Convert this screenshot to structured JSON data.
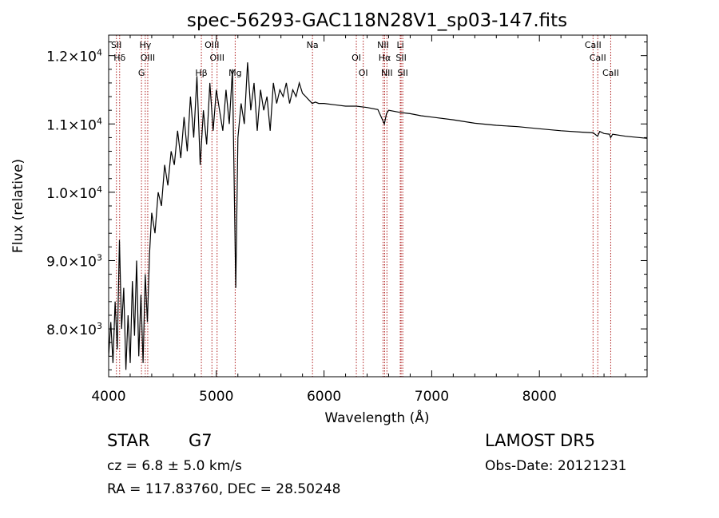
{
  "chart_data": {
    "type": "line",
    "title": "spec-56293-GAC118N28V1_sp03-147.fits",
    "xlabel": "Wavelength (Å)",
    "ylabel": "Flux (relative)",
    "xlim": [
      4000,
      9000
    ],
    "ylim": [
      7300,
      12300
    ],
    "grid": false,
    "x_ticks": [
      4000,
      5000,
      6000,
      7000,
      8000
    ],
    "x_tick_labels": [
      "4000",
      "5000",
      "6000",
      "7000",
      "8000"
    ],
    "y_ticks": [
      8000,
      9000,
      10000,
      11000,
      12000
    ],
    "y_tick_mantissa": [
      "8.0",
      "9.0",
      "1.0",
      "1.1",
      "1.2"
    ],
    "y_tick_exponent": [
      "3",
      "3",
      "4",
      "4",
      "4"
    ],
    "y_tick_times": "×10",
    "line_color": "#000000",
    "marker_color": "#b02020",
    "series": [
      {
        "x": [
          4000,
          4020,
          4040,
          4060,
          4080,
          4100,
          4120,
          4140,
          4160,
          4180,
          4200,
          4220,
          4240,
          4260,
          4280,
          4300,
          4320,
          4340,
          4360,
          4380,
          4400,
          4430,
          4460,
          4490,
          4520,
          4550,
          4580,
          4610,
          4640,
          4670,
          4700,
          4730,
          4760,
          4790,
          4820,
          4850,
          4880,
          4910,
          4940,
          4970,
          5000,
          5030,
          5060,
          5090,
          5120,
          5150,
          5180,
          5200,
          5230,
          5260,
          5290,
          5320,
          5350,
          5380,
          5410,
          5440,
          5470,
          5500,
          5530,
          5560,
          5590,
          5620,
          5650,
          5680,
          5710,
          5740,
          5770,
          5800,
          5830,
          5860,
          5890,
          5920,
          5950,
          6000,
          6100,
          6200,
          6300,
          6400,
          6500,
          6560,
          6580,
          6600,
          6700,
          6800,
          6900,
          7000,
          7200,
          7400,
          7600,
          7800,
          8000,
          8200,
          8400,
          8500,
          8540,
          8560,
          8600,
          8650,
          8662,
          8680,
          8800,
          9000
        ],
        "y": [
          7600,
          8100,
          7500,
          8400,
          7700,
          9300,
          8000,
          8600,
          7400,
          8200,
          7500,
          8700,
          7900,
          9000,
          7600,
          8500,
          7500,
          8800,
          8100,
          9100,
          9700,
          9400,
          10000,
          9800,
          10400,
          10100,
          10600,
          10400,
          10900,
          10500,
          11100,
          10600,
          11400,
          10800,
          11700,
          10400,
          11200,
          10700,
          11600,
          10900,
          11500,
          11200,
          10900,
          11500,
          11000,
          11800,
          8600,
          10800,
          11300,
          11000,
          11900,
          11200,
          11600,
          10900,
          11500,
          11200,
          11400,
          10900,
          11600,
          11300,
          11500,
          11400,
          11600,
          11300,
          11500,
          11400,
          11600,
          11450,
          11400,
          11350,
          11300,
          11320,
          11300,
          11300,
          11280,
          11260,
          11260,
          11240,
          11210,
          11000,
          11150,
          11200,
          11170,
          11150,
          11120,
          11100,
          11060,
          11010,
          10980,
          10960,
          10930,
          10900,
          10880,
          10870,
          10820,
          10890,
          10860,
          10850,
          10800,
          10850,
          10820,
          10790
        ]
      }
    ],
    "lines": [
      {
        "x": 4072,
        "labels": [
          "SII"
        ]
      },
      {
        "x": 4102,
        "labels": [
          "Hδ"
        ]
      },
      {
        "x": 4305,
        "labels": [
          "G"
        ]
      },
      {
        "x": 4340,
        "labels": [
          "Hγ"
        ]
      },
      {
        "x": 4363,
        "labels": [
          "OIII"
        ]
      },
      {
        "x": 4861,
        "labels": [
          "Hβ"
        ]
      },
      {
        "x": 4959,
        "labels": [
          "OIII"
        ]
      },
      {
        "x": 5007,
        "labels": [
          "OIII"
        ]
      },
      {
        "x": 5175,
        "labels": [
          "Mg"
        ]
      },
      {
        "x": 5893,
        "labels": [
          "Na"
        ]
      },
      {
        "x": 6300,
        "labels": [
          "OI"
        ]
      },
      {
        "x": 6364,
        "labels": [
          "OI"
        ]
      },
      {
        "x": 6548,
        "labels": [
          "NII"
        ]
      },
      {
        "x": 6563,
        "labels": [
          "Hα"
        ]
      },
      {
        "x": 6584,
        "labels": [
          "NII"
        ]
      },
      {
        "x": 6708,
        "labels": [
          "Li"
        ]
      },
      {
        "x": 6716,
        "labels": [
          "SII"
        ]
      },
      {
        "x": 6731,
        "labels": [
          "SII"
        ]
      },
      {
        "x": 8498,
        "labels": [
          "CaII"
        ]
      },
      {
        "x": 8542,
        "labels": [
          "CaII"
        ]
      },
      {
        "x": 8662,
        "labels": [
          "CaII"
        ]
      }
    ]
  },
  "footer": {
    "object_class": "STAR",
    "subclass": "G7",
    "cz": "cz = 6.8 ± 5.0 km/s",
    "coords": "RA = 117.83760, DEC =  28.50248",
    "survey": "LAMOST DR5",
    "obs_date": "Obs-Date: 20121231"
  }
}
